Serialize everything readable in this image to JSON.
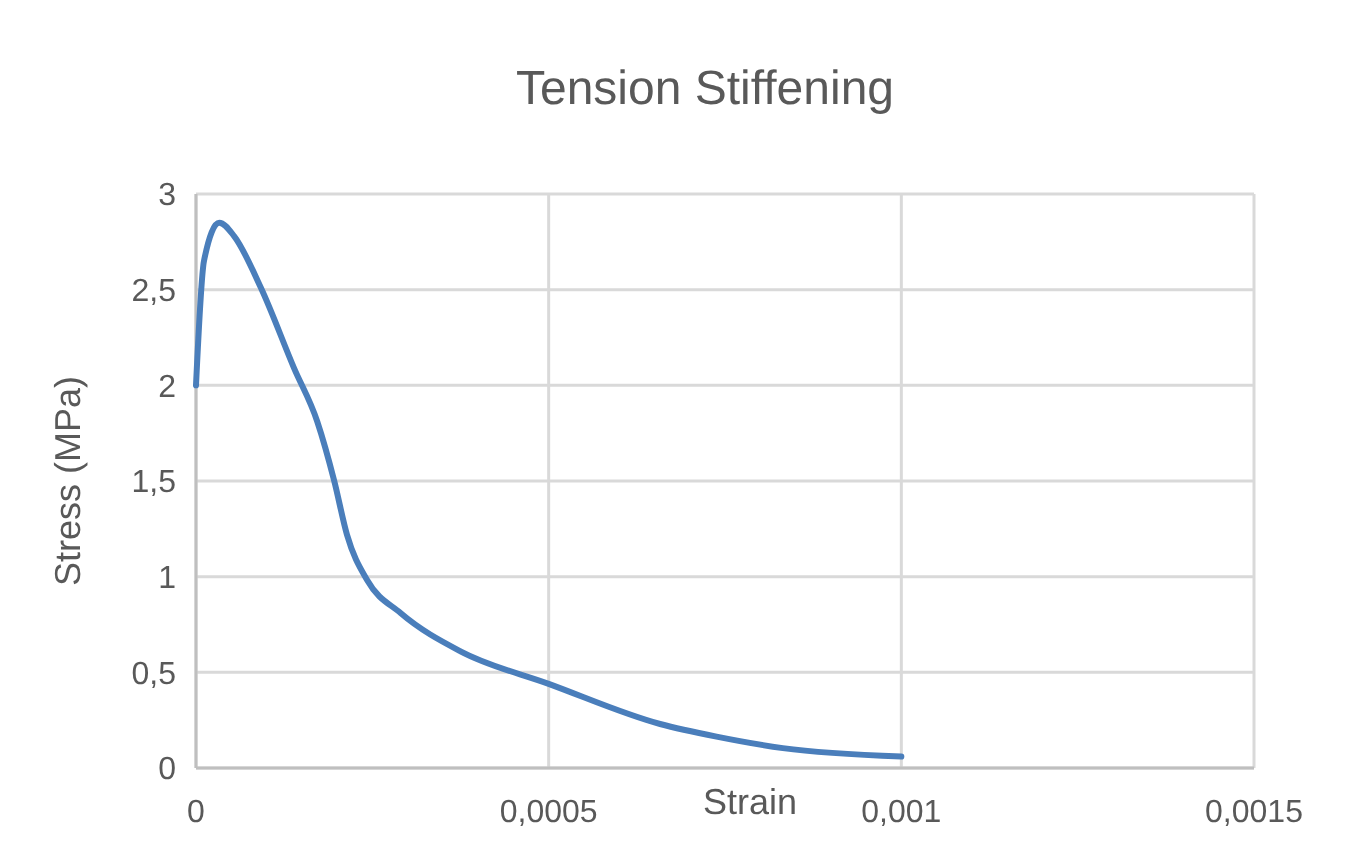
{
  "chart_data": {
    "type": "line",
    "title": "Tension Stiffening",
    "xlabel": "Strain",
    "ylabel": "Stress (MPa)",
    "xlim": [
      0,
      0.0015
    ],
    "xticks": [
      {
        "value": 0,
        "label": "0"
      },
      {
        "value": 0.0005,
        "label": "0,0005"
      },
      {
        "value": 0.001,
        "label": "0,001"
      },
      {
        "value": 0.0015,
        "label": "0,0015"
      }
    ],
    "ylim": [
      0,
      3
    ],
    "yticks": [
      {
        "value": 0,
        "label": "0"
      },
      {
        "value": 0.5,
        "label": "0,5"
      },
      {
        "value": 1,
        "label": "1"
      },
      {
        "value": 1.5,
        "label": "1,5"
      },
      {
        "value": 2,
        "label": "2"
      },
      {
        "value": 2.5,
        "label": "2,5"
      },
      {
        "value": 3,
        "label": "3"
      }
    ],
    "grid": true,
    "marker": "none",
    "line_style": "solid",
    "series": [
      {
        "color": "#4a7ebb",
        "x": [
          0,
          1.13e-05,
          3.3e-05,
          5.4e-05,
          9.2e-05,
          0.000139,
          0.000172,
          0.000196,
          0.000214,
          0.000243,
          0.00029,
          0.000375,
          0.0005,
          0.000658,
          0.000738,
          0.000832,
          0.001
        ],
        "values": [
          2.0,
          2.65,
          2.85,
          2.78,
          2.51,
          2.09,
          1.81,
          1.5,
          1.22,
          0.98,
          0.81,
          0.61,
          0.44,
          0.23,
          0.164,
          0.104,
          0.06
        ]
      }
    ]
  }
}
